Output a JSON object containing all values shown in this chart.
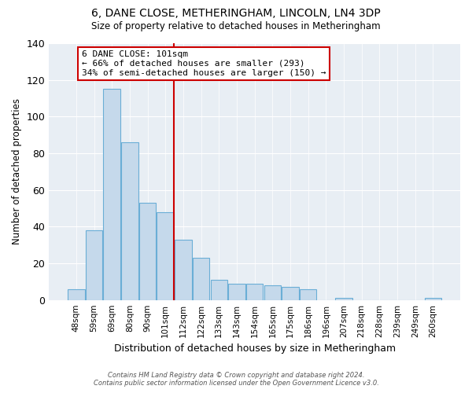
{
  "title": "6, DANE CLOSE, METHERINGHAM, LINCOLN, LN4 3DP",
  "subtitle": "Size of property relative to detached houses in Metheringham",
  "xlabel": "Distribution of detached houses by size in Metheringham",
  "ylabel": "Number of detached properties",
  "bar_labels": [
    "48sqm",
    "59sqm",
    "69sqm",
    "80sqm",
    "90sqm",
    "101sqm",
    "112sqm",
    "122sqm",
    "133sqm",
    "143sqm",
    "154sqm",
    "165sqm",
    "175sqm",
    "186sqm",
    "196sqm",
    "207sqm",
    "218sqm",
    "228sqm",
    "239sqm",
    "249sqm",
    "260sqm"
  ],
  "bar_values": [
    6,
    38,
    115,
    86,
    53,
    48,
    33,
    23,
    11,
    9,
    9,
    8,
    7,
    6,
    0,
    1,
    0,
    0,
    0,
    0,
    1
  ],
  "bar_color": "#c5d9eb",
  "bar_edge_color": "#6aaed6",
  "highlight_line_color": "#cc0000",
  "annotation_line1": "6 DANE CLOSE: 101sqm",
  "annotation_line2": "← 66% of detached houses are smaller (293)",
  "annotation_line3": "34% of semi-detached houses are larger (150) →",
  "annotation_box_edge_color": "#cc0000",
  "ylim": [
    0,
    140
  ],
  "yticks": [
    0,
    20,
    40,
    60,
    80,
    100,
    120,
    140
  ],
  "footer_line1": "Contains HM Land Registry data © Crown copyright and database right 2024.",
  "footer_line2": "Contains public sector information licensed under the Open Government Licence v3.0.",
  "background_color": "#e8eef4",
  "grid_color": "#ffffff"
}
